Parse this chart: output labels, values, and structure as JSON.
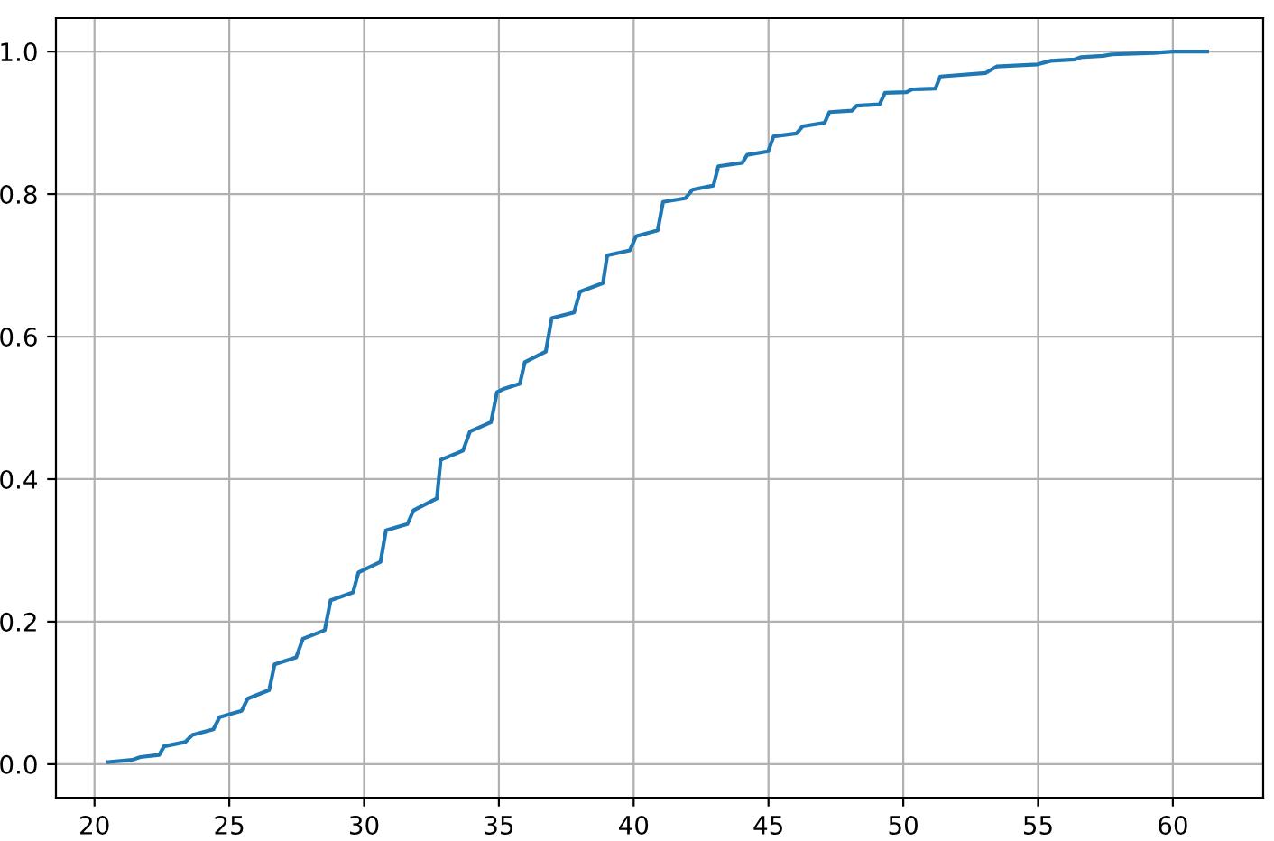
{
  "chart_data": {
    "type": "line",
    "x": [
      20.51,
      21.4,
      21.7,
      22.4,
      22.58,
      23.36,
      23.63,
      24.41,
      24.64,
      25.46,
      25.68,
      26.48,
      26.68,
      27.48,
      27.73,
      28.54,
      28.76,
      29.59,
      29.79,
      30.61,
      30.81,
      31.61,
      31.83,
      32.7,
      32.84,
      33.67,
      33.93,
      34.71,
      34.93,
      35.2,
      35.78,
      35.96,
      36.74,
      36.96,
      37.79,
      38.01,
      38.86,
      39.02,
      39.86,
      40.09,
      40.89,
      41.09,
      41.91,
      42.18,
      42.96,
      43.14,
      44.03,
      44.21,
      44.99,
      45.19,
      46.04,
      46.26,
      47.08,
      47.26,
      48.1,
      48.27,
      49.12,
      49.32,
      50.12,
      50.34,
      51.19,
      51.37,
      53.06,
      53.46,
      54.98,
      55.47,
      56.36,
      56.58,
      57.41,
      57.74,
      59.3,
      60.0,
      61.27
    ],
    "series": [
      {
        "color": "#1f77b4",
        "values": [
          0.003,
          0.006,
          0.01,
          0.013,
          0.025,
          0.031,
          0.041,
          0.049,
          0.066,
          0.075,
          0.092,
          0.104,
          0.14,
          0.15,
          0.176,
          0.188,
          0.23,
          0.241,
          0.269,
          0.284,
          0.328,
          0.337,
          0.356,
          0.373,
          0.427,
          0.44,
          0.467,
          0.48,
          0.522,
          0.527,
          0.534,
          0.564,
          0.579,
          0.626,
          0.634,
          0.663,
          0.675,
          0.714,
          0.721,
          0.741,
          0.749,
          0.789,
          0.794,
          0.806,
          0.812,
          0.839,
          0.844,
          0.855,
          0.86,
          0.881,
          0.885,
          0.895,
          0.9,
          0.915,
          0.917,
          0.924,
          0.926,
          0.942,
          0.943,
          0.947,
          0.948,
          0.965,
          0.97,
          0.979,
          0.982,
          0.987,
          0.989,
          0.992,
          0.994,
          0.996,
          0.998,
          1.0,
          1.0
        ]
      }
    ],
    "xlim": [
      18.57,
      63.35
    ],
    "ylim": [
      -0.047,
      1.047
    ],
    "xticks": [
      20,
      25,
      30,
      35,
      40,
      45,
      50,
      55,
      60
    ],
    "yticks": [
      {
        "value": 0,
        "label": "0.0"
      },
      {
        "value": 0.2,
        "label": "0.2"
      },
      {
        "value": 0.4,
        "label": "0.4"
      },
      {
        "value": 0.6,
        "label": "0.6"
      },
      {
        "value": 0.8,
        "label": "0.8"
      },
      {
        "value": 1.0,
        "label": "1.0"
      }
    ],
    "grid": true
  }
}
